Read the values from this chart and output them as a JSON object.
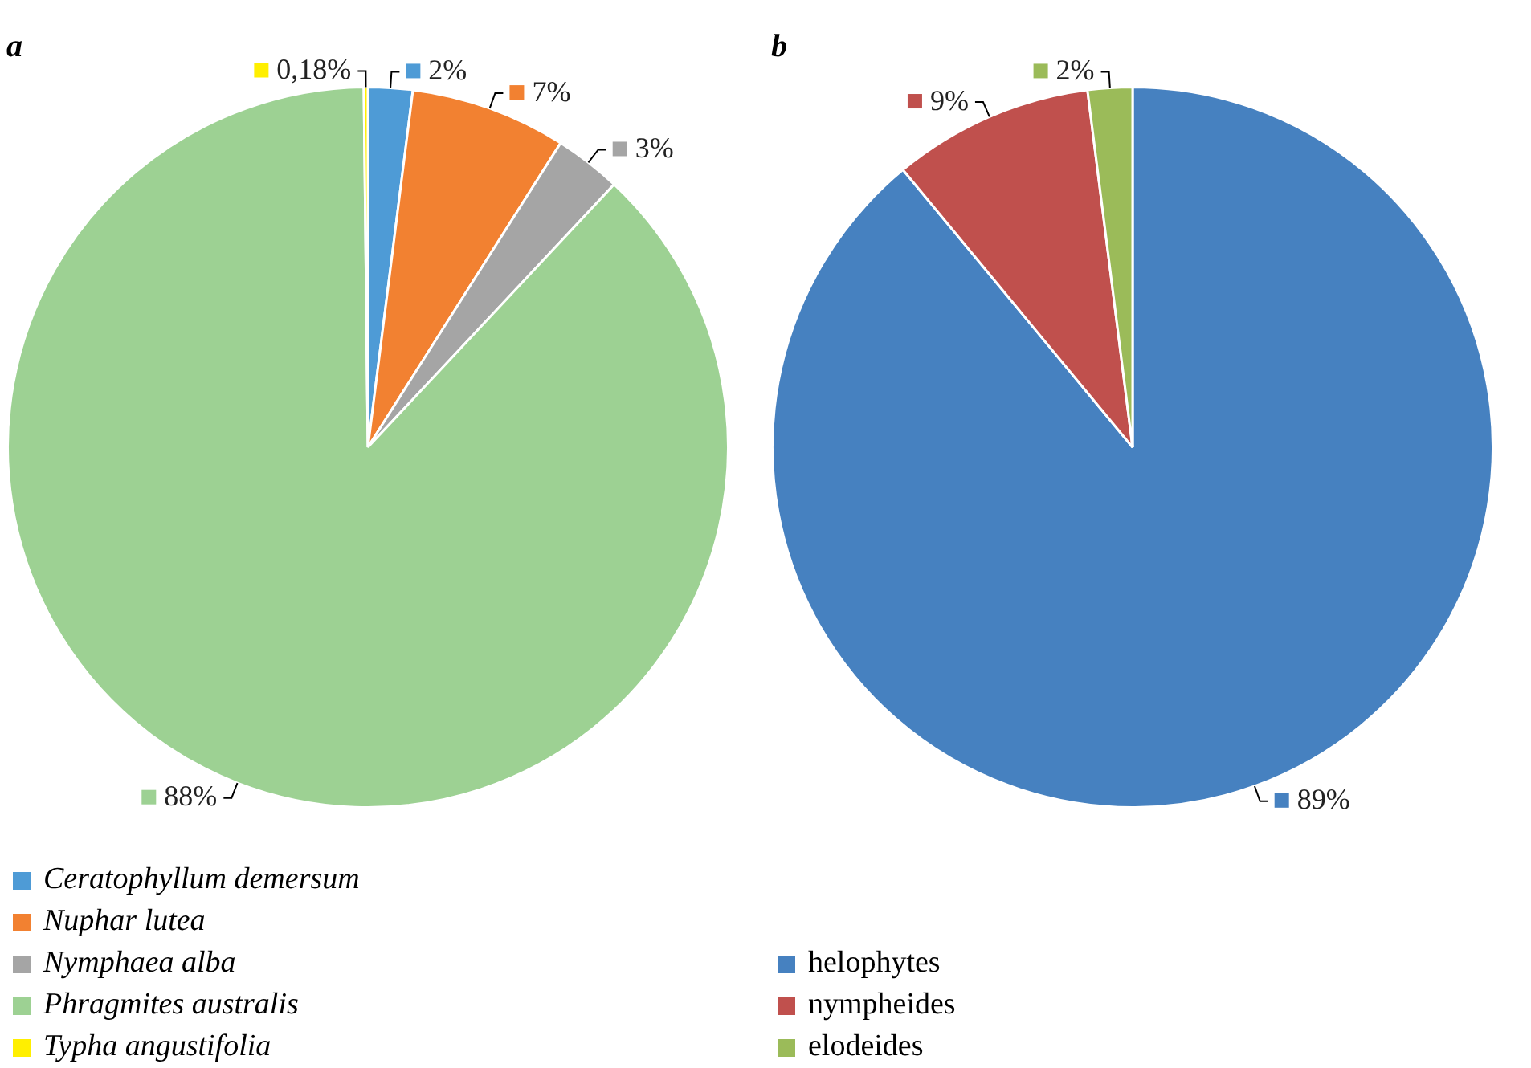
{
  "chart_data": [
    {
      "type": "pie",
      "title": "a",
      "categories": [
        "Ceratophyllum demersum",
        "Nuphar lutea",
        "Nymphaea alba",
        "Phragmites australis",
        "Typha angustifolia"
      ],
      "values": [
        2,
        7,
        3,
        88,
        0.18
      ],
      "value_labels": [
        "2%",
        "7%",
        "3%",
        "88%",
        "0,18%"
      ],
      "colors": [
        "#4e9bd6",
        "#f28131",
        "#a5a5a5",
        "#9dd193",
        "#ffef00"
      ],
      "legend": "bottom left"
    },
    {
      "type": "pie",
      "title": "b",
      "categories": [
        "helophytes",
        "nympheides",
        "elodeides"
      ],
      "values": [
        89,
        9,
        2
      ],
      "value_labels": [
        "89%",
        "9%",
        "2%"
      ],
      "colors": [
        "#4681c0",
        "#c0504d",
        "#9bbb59"
      ],
      "legend": "bottom left"
    }
  ]
}
